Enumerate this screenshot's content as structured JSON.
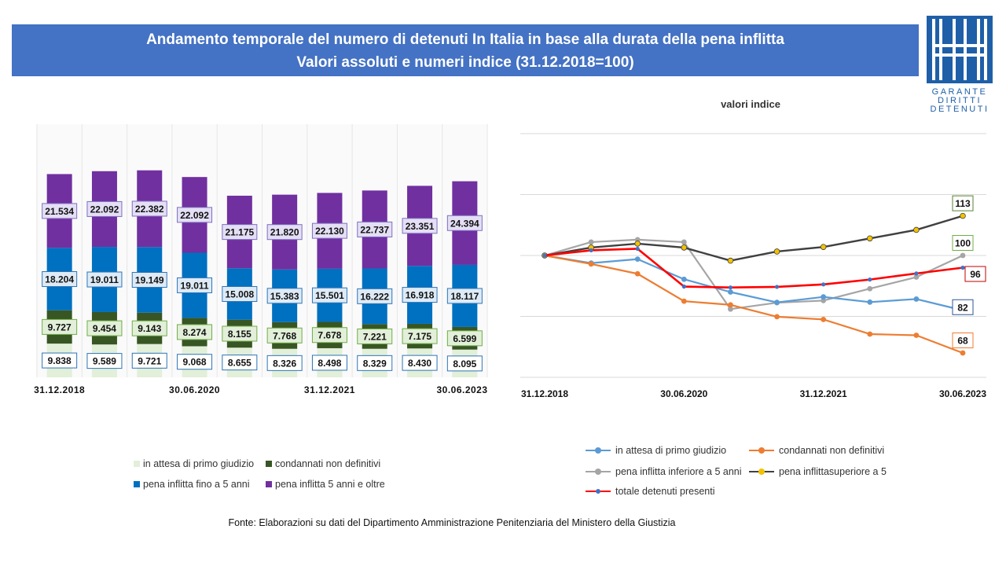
{
  "header": {
    "title_line1": "Andamento temporale del numero di detenuti In Italia in base alla durata della pena inflitta",
    "title_line2": "Valori assoluti e numeri indice (31.12.2018=100)"
  },
  "logo": {
    "line1": "GARANTE",
    "line2": "DIRITTI",
    "line3": "DETENUTI",
    "color": "#1f5fa8"
  },
  "source": "Fonte:  Elaborazioni su dati del Dipartimento  Amministrazione  Penitenziaria del Ministero della Giustizia",
  "chart_data": [
    {
      "type": "bar",
      "stacked": true,
      "tick_labels": [
        "31.12.2018",
        "30.06.2020",
        "31.12.2021",
        "30.06.2023"
      ],
      "tick_positions": [
        0,
        3,
        6,
        9
      ],
      "series": [
        {
          "name": "in attesa di primo giudizio",
          "color": "#e2efd9",
          "values": [
            9838,
            9589,
            9721,
            9068,
            8655,
            8326,
            8498,
            8329,
            8430,
            8095
          ],
          "labels": [
            "9.838",
            "9.589",
            "9.721",
            "9.068",
            "8.655",
            "8.326",
            "8.498",
            "8.329",
            "8.430",
            "8.095"
          ]
        },
        {
          "name": "condannati non definitivi",
          "color": "#375623",
          "values": [
            9727,
            9454,
            9143,
            8274,
            8155,
            7768,
            7678,
            7221,
            7175,
            6599
          ],
          "labels": [
            "9.727",
            "9.454",
            "9.143",
            "8.274",
            "8.155",
            "7.768",
            "7.678",
            "7.221",
            "7.175",
            "6.599"
          ]
        },
        {
          "name": "pena inflitta fino a 5 anni",
          "color": "#0070c0",
          "values": [
            18204,
            19011,
            19149,
            19011,
            15008,
            15383,
            15501,
            16222,
            16918,
            18117
          ],
          "labels": [
            "18.204",
            "19.011",
            "19.149",
            "19.011",
            "15.008",
            "15.383",
            "15.501",
            "16.222",
            "16.918",
            "18.117"
          ]
        },
        {
          "name": "pena inflitta 5 anni e oltre",
          "color": "#7030a0",
          "values": [
            21534,
            22092,
            22382,
            22092,
            21175,
            21820,
            22130,
            22737,
            23351,
            24394
          ],
          "labels": [
            "21.534",
            "22.092",
            "22.382",
            "22.092",
            "21.175",
            "21.820",
            "22.130",
            "22.737",
            "23.351",
            "24.394"
          ]
        }
      ]
    },
    {
      "type": "line",
      "title": "valori indice",
      "tick_labels": [
        "31.12.2018",
        "30.06.2020",
        "31.12.2021",
        "30.06.2023"
      ],
      "tick_positions": [
        0,
        3,
        6,
        9
      ],
      "ylim": [
        60,
        140
      ],
      "series": [
        {
          "name": "in attesa di primo giudizio",
          "color": "#5b9bd5",
          "values": [
            100,
            97.5,
            98.8,
            92.2,
            88,
            84.6,
            86.4,
            84.7,
            85.7,
            82
          ],
          "end_label": "82"
        },
        {
          "name": "condannati non definitivi",
          "color": "#ed7d31",
          "values": [
            100,
            97.2,
            94,
            85,
            83.8,
            79.9,
            79,
            74.2,
            73.8,
            68
          ],
          "end_label": "68"
        },
        {
          "name": "pena inflitta inferiore a 5 anni",
          "color": "#a5a5a5",
          "values": [
            100,
            104.4,
            105.2,
            104.4,
            82.4,
            84.5,
            85.2,
            89.1,
            92.9,
            100
          ],
          "end_label": "100"
        },
        {
          "name": "pena inflittasuperiore a 5",
          "color": "#404040",
          "values": [
            100,
            102.6,
            103.9,
            102.6,
            98.3,
            101.3,
            102.8,
            105.6,
            108.4,
            113
          ],
          "end_label": "113"
        },
        {
          "name": "totale detenuti presenti",
          "color": "#ff0000",
          "values": [
            100,
            101.7,
            102.2,
            89.8,
            89.5,
            89.7,
            90.5,
            92.1,
            94.1,
            96
          ],
          "end_label": "96"
        }
      ]
    }
  ]
}
